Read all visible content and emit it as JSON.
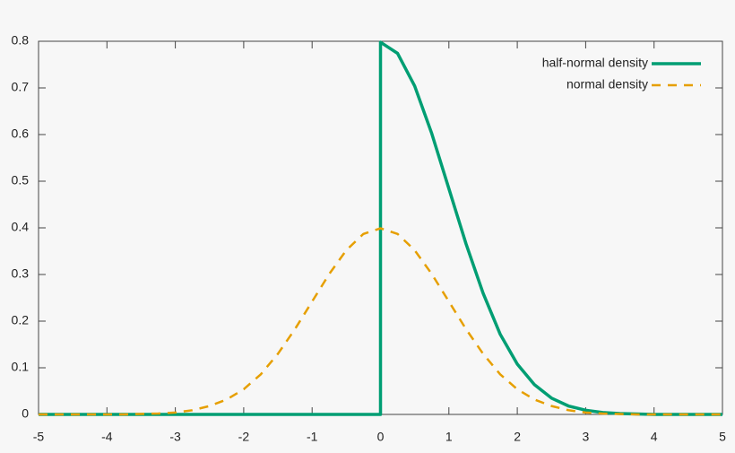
{
  "chart_data": {
    "type": "line",
    "x": [
      -5,
      -4.75,
      -4.5,
      -4.25,
      -4,
      -3.75,
      -3.5,
      -3.25,
      -3,
      -2.75,
      -2.5,
      -2.25,
      -2,
      -1.75,
      -1.5,
      -1.25,
      -1,
      -0.75,
      -0.5,
      -0.25,
      0,
      0,
      0.25,
      0.5,
      0.75,
      1,
      1.25,
      1.5,
      1.75,
      2,
      2.25,
      2.5,
      2.75,
      3,
      3.25,
      3.5,
      3.75,
      4,
      4.25,
      4.5,
      4.75,
      5
    ],
    "series": [
      {
        "name": "half-normal density",
        "color": "#009e73",
        "dash": false,
        "values": [
          0,
          0,
          0,
          0,
          0,
          0,
          0,
          0,
          0,
          0,
          0,
          0,
          0,
          0,
          0,
          0,
          0,
          0,
          0,
          0,
          0,
          0.798,
          0.774,
          0.704,
          0.602,
          0.484,
          0.366,
          0.26,
          0.172,
          0.108,
          0.064,
          0.035,
          0.018,
          0.009,
          0.004,
          0.002,
          0.001,
          0,
          0,
          0,
          0,
          0
        ]
      },
      {
        "name": "normal density",
        "color": "#e69f00",
        "dash": true,
        "values": [
          0,
          0,
          0,
          0,
          0,
          0,
          0.001,
          0.002,
          0.004,
          0.009,
          0.018,
          0.032,
          0.054,
          0.086,
          0.13,
          0.183,
          0.242,
          0.301,
          0.352,
          0.387,
          0.399,
          0.399,
          0.387,
          0.352,
          0.301,
          0.242,
          0.183,
          0.13,
          0.086,
          0.054,
          0.032,
          0.018,
          0.009,
          0.004,
          0.002,
          0.001,
          0,
          0,
          0,
          0,
          0,
          0
        ]
      }
    ],
    "xlim": [
      -5,
      5
    ],
    "xticks": [
      -5,
      -4,
      -3,
      -2,
      -1,
      0,
      1,
      2,
      3,
      4,
      5
    ],
    "ylim": [
      0,
      0.8
    ],
    "yticks": [
      0,
      0.1,
      0.2,
      0.3,
      0.4,
      0.5,
      0.6,
      0.7,
      0.8
    ],
    "grid": false,
    "legend": "upper right"
  }
}
